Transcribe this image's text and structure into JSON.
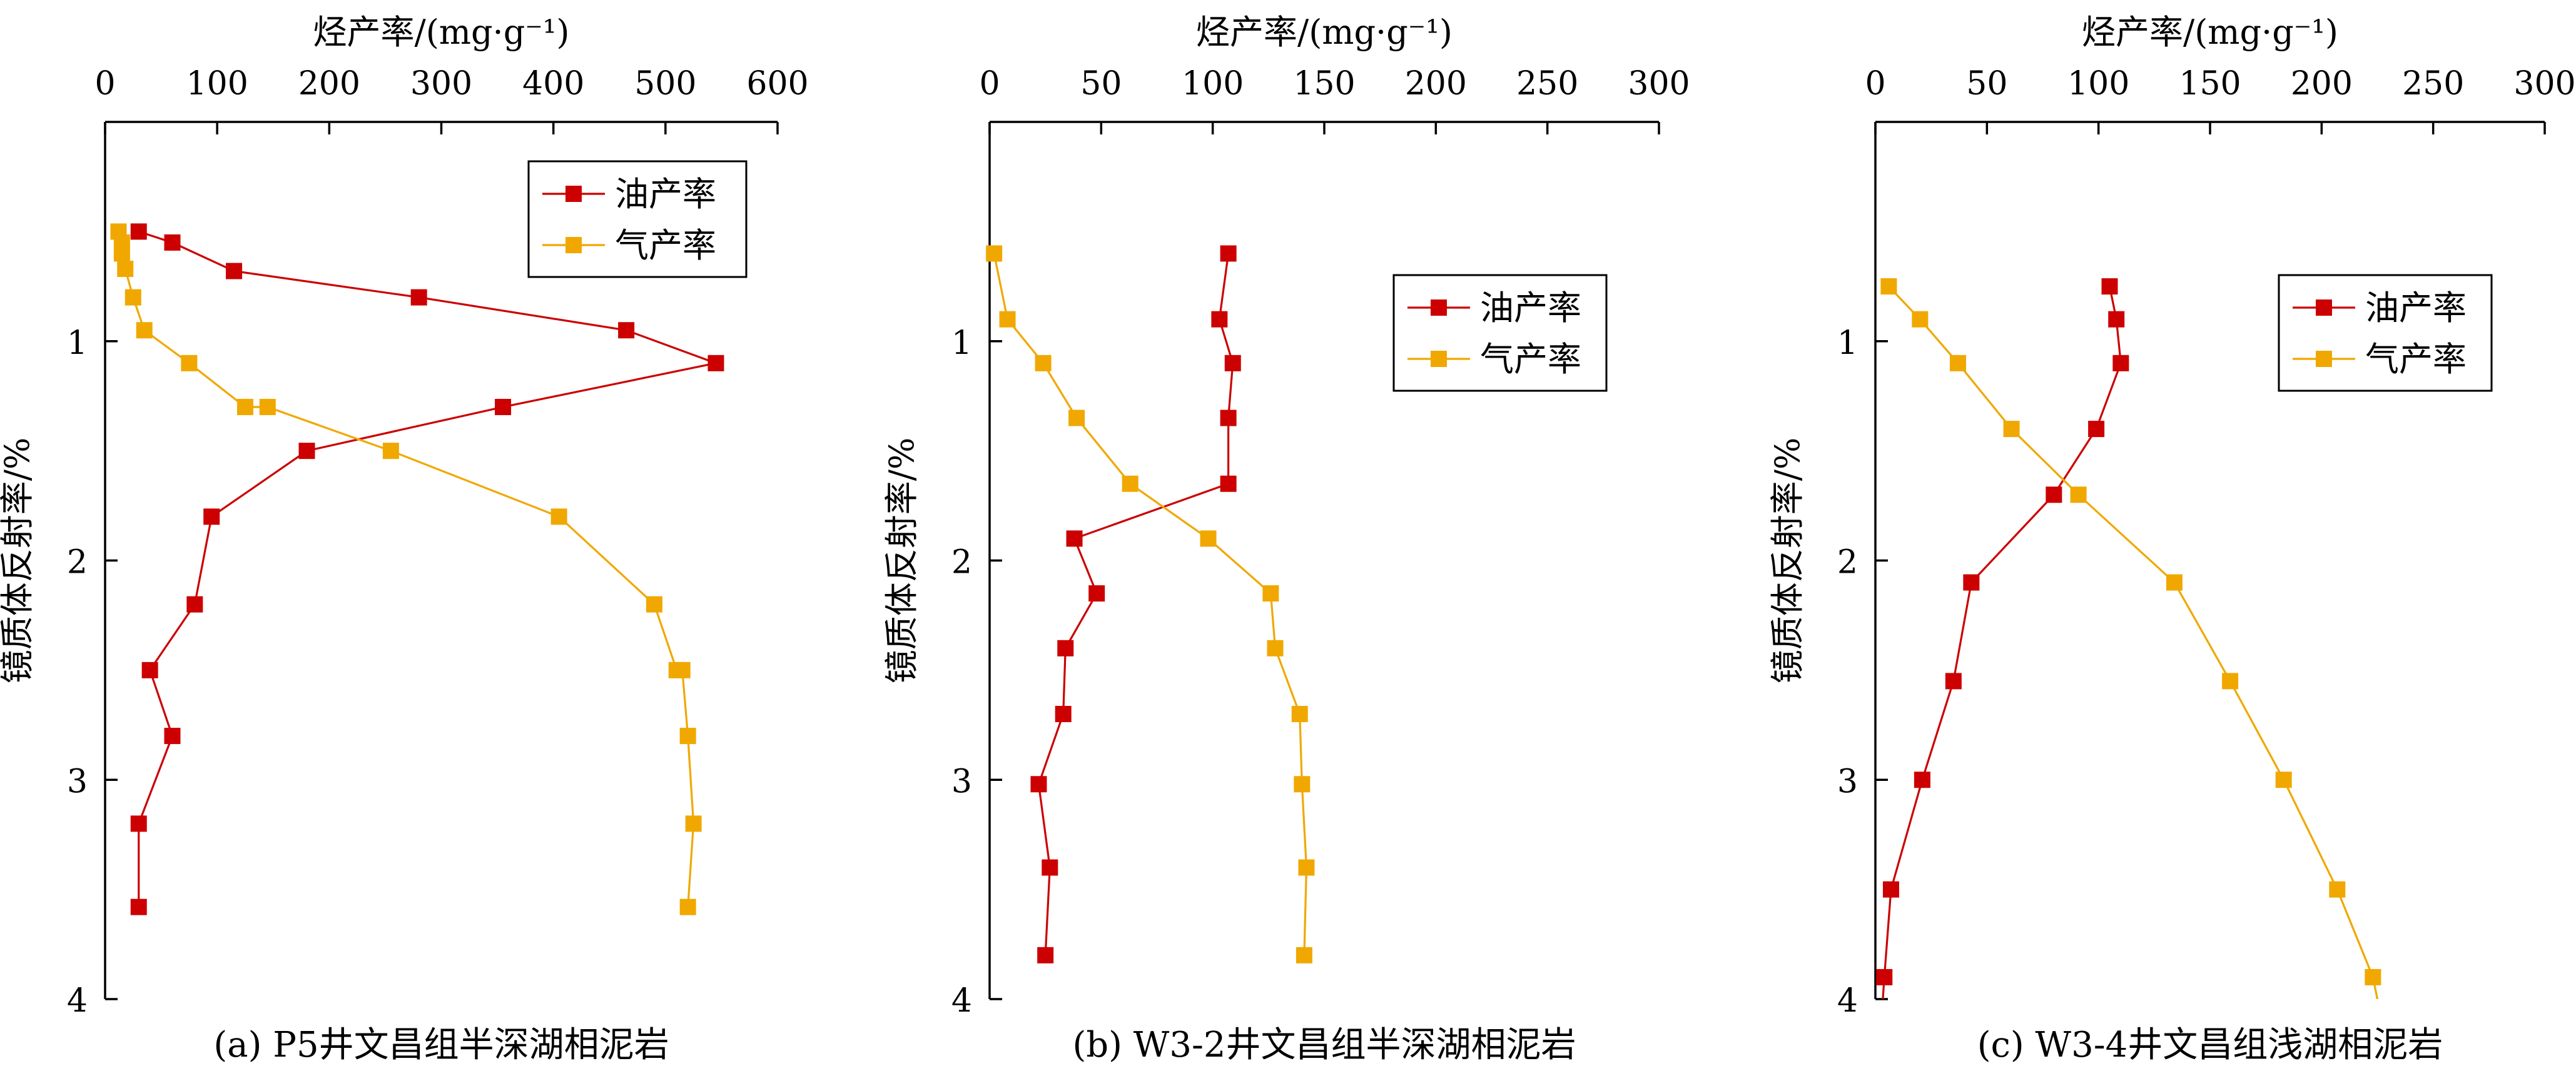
{
  "colors": {
    "oil": "#cc0000",
    "gas": "#f0a800",
    "axis": "#000000"
  },
  "chart_data": [
    {
      "type": "line",
      "title": "(a) P5井文昌组半深湖相泥岩",
      "xlabel": "烃产率/(mg·g⁻¹)",
      "ylabel": "镜质体反射率/%",
      "xlim": [
        0,
        600
      ],
      "ylim": [
        0,
        4
      ],
      "x_ticks": [
        "0",
        "100",
        "200",
        "300",
        "400",
        "500",
        "600"
      ],
      "y_ticks": [
        "1",
        "2",
        "3",
        "4"
      ],
      "legend_position": "top-right",
      "series": [
        {
          "name": "油产率",
          "color_key": "oil",
          "clip": false,
          "points": [
            [
              30,
              0.5
            ],
            [
              60,
              0.55
            ],
            [
              115,
              0.68
            ],
            [
              280,
              0.8
            ],
            [
              465,
              0.95
            ],
            [
              545,
              1.1
            ],
            [
              355,
              1.3
            ],
            [
              180,
              1.5
            ],
            [
              95,
              1.8
            ],
            [
              80,
              2.2
            ],
            [
              40,
              2.5
            ],
            [
              60,
              2.8
            ],
            [
              30,
              3.2
            ],
            [
              30,
              3.58
            ]
          ]
        },
        {
          "name": "气产率",
          "color_key": "gas",
          "clip": false,
          "points": [
            [
              12,
              0.5
            ],
            [
              15,
              0.55
            ],
            [
              15,
              0.6
            ],
            [
              18,
              0.67
            ],
            [
              25,
              0.8
            ],
            [
              35,
              0.95
            ],
            [
              75,
              1.1
            ],
            [
              125,
              1.3
            ],
            [
              145,
              1.3
            ],
            [
              255,
              1.5
            ],
            [
              405,
              1.8
            ],
            [
              490,
              2.2
            ],
            [
              510,
              2.5
            ],
            [
              515,
              2.5
            ],
            [
              520,
              2.8
            ],
            [
              525,
              3.2
            ],
            [
              520,
              3.58
            ]
          ]
        }
      ]
    },
    {
      "type": "line",
      "title": "(b) W3-2井文昌组半深湖相泥岩",
      "xlabel": "烃产率/(mg·g⁻¹)",
      "ylabel": "镜质体反射率/%",
      "xlim": [
        0,
        300
      ],
      "ylim": [
        0,
        4
      ],
      "x_ticks": [
        "0",
        "50",
        "100",
        "150",
        "200",
        "250",
        "300"
      ],
      "y_ticks": [
        "1",
        "2",
        "3",
        "4"
      ],
      "legend_position": "top-right",
      "series": [
        {
          "name": "油产率",
          "color_key": "oil",
          "clip": false,
          "points": [
            [
              107,
              0.6
            ],
            [
              103,
              0.9
            ],
            [
              109,
              1.1
            ],
            [
              107,
              1.35
            ],
            [
              107,
              1.65
            ],
            [
              38,
              1.9
            ],
            [
              48,
              2.15
            ],
            [
              34,
              2.4
            ],
            [
              33,
              2.7
            ],
            [
              22,
              3.02
            ],
            [
              27,
              3.4
            ],
            [
              25,
              3.8
            ]
          ]
        },
        {
          "name": "气产率",
          "color_key": "gas",
          "clip": false,
          "points": [
            [
              2,
              0.6
            ],
            [
              8,
              0.9
            ],
            [
              24,
              1.1
            ],
            [
              39,
              1.35
            ],
            [
              63,
              1.65
            ],
            [
              98,
              1.9
            ],
            [
              126,
              2.15
            ],
            [
              128,
              2.4
            ],
            [
              139,
              2.7
            ],
            [
              140,
              3.02
            ],
            [
              142,
              3.4
            ],
            [
              141,
              3.8
            ]
          ]
        }
      ]
    },
    {
      "type": "line",
      "title": "(c) W3-4井文昌组浅湖相泥岩",
      "xlabel": "烃产率/(mg·g⁻¹)",
      "ylabel": "镜质体反射率/%",
      "xlim": [
        0,
        300
      ],
      "ylim": [
        0,
        4
      ],
      "x_ticks": [
        "0",
        "50",
        "100",
        "150",
        "200",
        "250",
        "300"
      ],
      "y_ticks": [
        "1",
        "2",
        "3",
        "4"
      ],
      "legend_position": "top-right",
      "series": [
        {
          "name": "油产率",
          "color_key": "oil",
          "clip": true,
          "points": [
            [
              105,
              0.75
            ],
            [
              108,
              0.9
            ],
            [
              110,
              1.1
            ],
            [
              99,
              1.4
            ],
            [
              80,
              1.7
            ],
            [
              43,
              2.1
            ],
            [
              35,
              2.55
            ],
            [
              21,
              3.0
            ],
            [
              7,
              3.5
            ],
            [
              4,
              3.9
            ],
            [
              3,
              4.05
            ]
          ]
        },
        {
          "name": "气产率",
          "color_key": "gas",
          "clip": true,
          "points": [
            [
              6,
              0.75
            ],
            [
              20,
              0.9
            ],
            [
              37,
              1.1
            ],
            [
              61,
              1.4
            ],
            [
              91,
              1.7
            ],
            [
              134,
              2.1
            ],
            [
              159,
              2.55
            ],
            [
              183,
              3.0
            ],
            [
              207,
              3.5
            ],
            [
              223,
              3.9
            ],
            [
              226,
              4.05
            ]
          ]
        }
      ]
    }
  ]
}
